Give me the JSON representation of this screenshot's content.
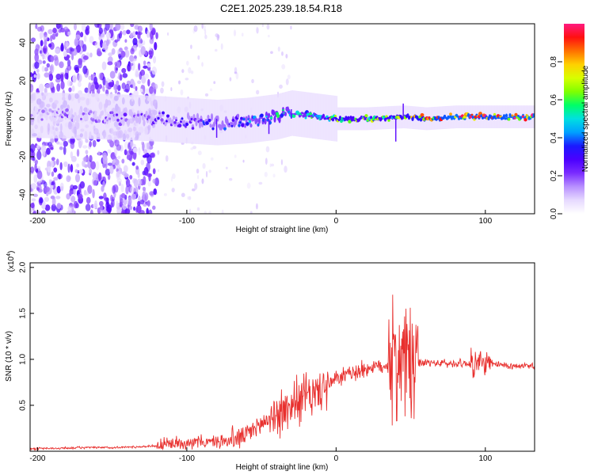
{
  "chart_data": [
    {
      "type": "heatmap",
      "title": "C2E1.2025.239.18.54.R18",
      "xlabel": "Height of straight line (km)",
      "ylabel": "Frequency (Hz)",
      "xlim": [
        -205,
        133
      ],
      "ylim": [
        -50,
        50
      ],
      "xticks": [
        -200,
        -100,
        0,
        100
      ],
      "yticks": [
        -40,
        -20,
        0,
        20,
        40
      ],
      "colorbar": {
        "label": "Normalized spectral amplitude",
        "range": [
          0,
          1
        ],
        "ticks": [
          0.0,
          0.2,
          0.4,
          0.6,
          0.8
        ],
        "colormap": [
          "#ffffff",
          "#e6d9ff",
          "#b890ff",
          "#7a2cff",
          "#4b00ff",
          "#1a1aff",
          "#00a0ff",
          "#00e0e0",
          "#00ff66",
          "#80ff00",
          "#d8ff00",
          "#ffd000",
          "#ff7000",
          "#ff1010",
          "#ff1a80"
        ]
      },
      "ridge": {
        "description_points_x": [
          -205,
          -150,
          -120,
          -100,
          -80,
          -60,
          -40,
          -30,
          -10,
          0,
          20,
          45,
          60,
          80,
          100,
          133
        ],
        "center_freq": [
          2,
          1,
          0,
          -1,
          -2,
          -1,
          1,
          3,
          1,
          0,
          0,
          1,
          0,
          1,
          1,
          1
        ],
        "peak_amplitude": [
          0.15,
          0.2,
          0.25,
          0.3,
          0.35,
          0.4,
          0.5,
          0.45,
          0.55,
          0.7,
          0.6,
          0.7,
          0.8,
          0.9,
          0.85,
          0.9
        ]
      }
    },
    {
      "type": "line",
      "xlabel": "Height of straight line (km)",
      "ylabel": "SNR (10 * v/v)",
      "y_scale_label": "(x10",
      "y_scale_exponent": "4",
      "xlim": [
        -205,
        133
      ],
      "ylim": [
        0,
        2.05
      ],
      "xticks": [
        -200,
        -100,
        0,
        100
      ],
      "yticks": [
        0.5,
        1.0,
        1.5,
        2.0
      ],
      "ytick_labels": [
        "0.5",
        "1.0",
        "1.5",
        "2.0"
      ],
      "color": "#e8302e",
      "series": [
        {
          "name": "SNR",
          "x": [
            -205,
            -190,
            -170,
            -150,
            -130,
            -120,
            -110,
            -100,
            -90,
            -80,
            -70,
            -60,
            -50,
            -40,
            -30,
            -25,
            -20,
            -15,
            -10,
            -5,
            0,
            10,
            20,
            30,
            38,
            42,
            45,
            47,
            50,
            55,
            60,
            70,
            80,
            90,
            95,
            100,
            110,
            120,
            133
          ],
          "y": [
            0.03,
            0.03,
            0.04,
            0.04,
            0.05,
            0.06,
            0.08,
            0.1,
            0.1,
            0.1,
            0.12,
            0.18,
            0.3,
            0.4,
            0.5,
            0.55,
            0.6,
            0.62,
            0.68,
            0.72,
            0.78,
            0.85,
            0.9,
            0.93,
            0.95,
            1.0,
            1.05,
            1.0,
            0.95,
            0.95,
            0.96,
            0.96,
            0.95,
            0.96,
            0.95,
            0.95,
            0.94,
            0.93,
            0.92
          ]
        }
      ],
      "noise_amplitude": [
        {
          "x_from": -205,
          "x_to": -120,
          "amp": 0.01
        },
        {
          "x_from": -120,
          "x_to": -70,
          "amp": 0.06
        },
        {
          "x_from": -70,
          "x_to": -40,
          "amp": 0.12
        },
        {
          "x_from": -40,
          "x_to": -5,
          "amp": 0.22
        },
        {
          "x_from": -5,
          "x_to": 35,
          "amp": 0.08
        },
        {
          "x_from": 35,
          "x_to": 55,
          "amp": 0.55
        },
        {
          "x_from": 55,
          "x_to": 90,
          "amp": 0.04
        },
        {
          "x_from": 90,
          "x_to": 105,
          "amp": 0.12
        },
        {
          "x_from": 105,
          "x_to": 133,
          "amp": 0.03
        }
      ]
    }
  ]
}
